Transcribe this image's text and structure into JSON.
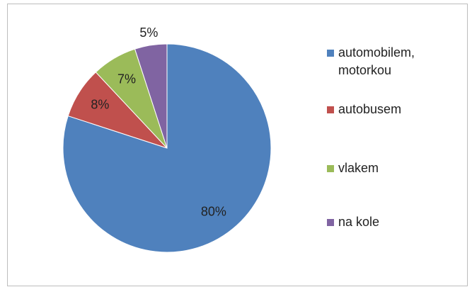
{
  "chart_data": {
    "type": "pie",
    "categories": [
      "automobilem, motorkou",
      "autobusem",
      "vlakem",
      "na kole"
    ],
    "values": [
      80,
      8,
      7,
      5
    ],
    "value_labels": [
      "80%",
      "8%",
      "7%",
      "5%"
    ],
    "colors": [
      "#4f81bd",
      "#c0504d",
      "#9bbb59",
      "#8064a2"
    ],
    "legend": "right"
  }
}
